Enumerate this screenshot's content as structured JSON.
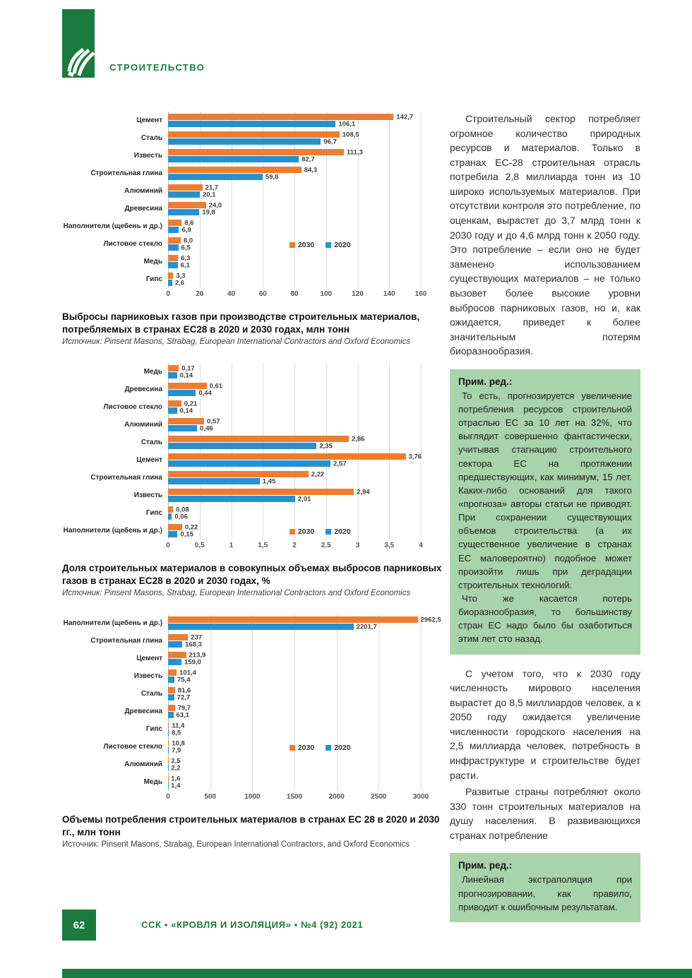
{
  "header": {
    "section_label": "СТРОИТЕЛЬСТВО"
  },
  "colors": {
    "accent_orange": "#ED7D31",
    "accent_blue": "#2791D0",
    "brand_green": "#1B7A3D",
    "note_green": "#A9D3AA"
  },
  "chart_data": [
    {
      "type": "bar",
      "orientation": "horizontal",
      "title": "Выбросы парниковых газов при производстве строительных материалов, потребляемых в странах ЕС28 в 2020 и 2030 годах, млн тонн",
      "source": "Источник: Pinsent Masons, Strabag, European International Contractors and Oxford Economics",
      "legend": [
        {
          "label": "2030",
          "color": "#ED7D31"
        },
        {
          "label": "2020",
          "color": "#2791D0"
        }
      ],
      "xlim": [
        0,
        160
      ],
      "xticks": [
        "0",
        "20",
        "40",
        "60",
        "80",
        "100",
        "120",
        "140",
        "160"
      ],
      "categories": [
        "Цемент",
        "Сталь",
        "Известь",
        "Строительная глина",
        "Алюминий",
        "Древесина",
        "Наполнители (щебень и др.)",
        "Листовое стекло",
        "Медь",
        "Гипс"
      ],
      "series": [
        {
          "name": "2030",
          "values": [
            142.7,
            108.5,
            111.3,
            84.3,
            21.7,
            24.0,
            8.6,
            8.0,
            6.3,
            3.3
          ],
          "labels": [
            "142,7",
            "108,5",
            "111,3",
            "84,3",
            "21,7",
            "24,0",
            "8,6",
            "8,0",
            "6,3",
            "3,3"
          ]
        },
        {
          "name": "2020",
          "values": [
            106.1,
            96.7,
            82.7,
            59.8,
            20.1,
            19.8,
            6.9,
            6.5,
            6.1,
            2.6
          ],
          "labels": [
            "106,1",
            "96,7",
            "82,7",
            "59,8",
            "20,1",
            "19,8",
            "6,9",
            "6,5",
            "6,1",
            "2,6"
          ]
        }
      ]
    },
    {
      "type": "bar",
      "orientation": "horizontal",
      "title": "Доля строительных материалов в совокупных объемах выбросов парниковых газов в странах ЕС28 в 2020 и 2030 годах, %",
      "source": "Источник: Pinsent Masons, Strabag, European International Contractors and Oxford Economics",
      "legend": [
        {
          "label": "2030",
          "color": "#ED7D31"
        },
        {
          "label": "2020",
          "color": "#2791D0"
        }
      ],
      "xlim": [
        0,
        4
      ],
      "xticks": [
        "0",
        "0,5",
        "1",
        "1,5",
        "2",
        "2,5",
        "3",
        "3,5",
        "4"
      ],
      "categories": [
        "Медь",
        "Древесина",
        "Листовое стекло",
        "Алюминий",
        "Сталь",
        "Цемент",
        "Строительная глина",
        "Известь",
        "Гипс",
        "Наполнители (щебень и др.)"
      ],
      "series": [
        {
          "name": "2030",
          "values": [
            0.17,
            0.61,
            0.21,
            0.57,
            2.86,
            3.76,
            2.22,
            2.94,
            0.08,
            0.22
          ],
          "labels": [
            "0,17",
            "0,61",
            "0,21",
            "0,57",
            "2,86",
            "3,76",
            "2,22",
            "2,94",
            "0,08",
            "0,22"
          ]
        },
        {
          "name": "2020",
          "values": [
            0.14,
            0.44,
            0.14,
            0.46,
            2.35,
            2.57,
            1.45,
            2.01,
            0.06,
            0.15
          ],
          "labels": [
            "0,14",
            "0,44",
            "0,14",
            "0,46",
            "2,35",
            "2,57",
            "1,45",
            "2,01",
            "0,06",
            "0,15"
          ]
        }
      ]
    },
    {
      "type": "bar",
      "orientation": "horizontal",
      "title": "Объемы потребления строительных материалов в странах ЕС 28 в 2020 и 2030 гг., млн тонн",
      "source": "Источник: Pinsent Masons, Strabag, European International Contractors, and Oxford Economics",
      "legend": [
        {
          "label": "2030",
          "color": "#ED7D31"
        },
        {
          "label": "2020",
          "color": "#2791D0"
        }
      ],
      "xlim": [
        0,
        3000
      ],
      "xticks": [
        "0",
        "500",
        "1000",
        "1500",
        "2000",
        "2500",
        "3000"
      ],
      "categories": [
        "Наполнители (щебень и др.)",
        "Строительная глина",
        "Цемент",
        "Известь",
        "Сталь",
        "Древесина",
        "Гипс",
        "Листовое стекло",
        "Алюминий",
        "Медь"
      ],
      "series": [
        {
          "name": "2030",
          "values": [
            2962.5,
            237,
            213.9,
            101.4,
            81.6,
            79.7,
            11.4,
            10.8,
            2.5,
            1.6
          ],
          "labels": [
            "2962,5",
            "237",
            "213,9",
            "101,4",
            "81,6",
            "79,7",
            "11,4",
            "10,8",
            "2,5",
            "1,6"
          ]
        },
        {
          "name": "2020",
          "values": [
            2201.7,
            168.3,
            159.0,
            75.4,
            72.7,
            63.1,
            8.5,
            7.9,
            2.2,
            1.4
          ],
          "labels": [
            "2201,7",
            "168,3",
            "159,0",
            "75,4",
            "72,7",
            "63,1",
            "8,5",
            "7,9",
            "2,2",
            "1,4"
          ]
        }
      ]
    }
  ],
  "article": {
    "paragraphs": [
      "Строительный сектор потребляет огромное количество природных ресурсов и материалов. Только в странах ЕС-28 строительная отрасль потребила 2,8 миллиарда тонн из 10 широко используемых материалов. При отсутствии контроля это потребление, по оценкам, вырастет до 3,7 млрд тонн к 2030 году и до 4,6 млрд тонн к 2050 году. Это потребление – если оно не будет заменено использованием существующих материалов – не только вызовет более высокие уровни выбросов парниковых газов, но и, как ожидается, приведет к более значительным потерям биоразнообразия.",
      "С учетом того, что к 2030 году численность мирового населения вырастет до 8,5 миллиардов человек, а к 2050 году ожидается увеличение численности городского населения на 2,5 миллиарда человек, потребность в инфраструктуре и строительстве будет расти.",
      "Развитые страны потребляют около 330 тонн строительных материалов на душу населения. В развивающихся странах потребление"
    ]
  },
  "notes": [
    {
      "heading": "Прим. ред.:",
      "paragraphs": [
        "То есть, прогнозируется увеличение потребления ресурсов строительной отраслью ЕС за 10 лет на 32%, что выглядит совершенно фантастически, учитывая стагнацию строительного сектора ЕС на протяжении предшествующих, как минимум, 15 лет. Каких-либо оснований для такого «прогноза» авторы статьи не приводят. При сохранении существующих объемов строительства (а их существенное увеличение в странах ЕС маловероятно) подобное может произойти лишь при деградации строительных технологий.",
        "Что же касается потерь биоразнообразия, то большинству стран ЕС надо было бы озаботиться этим лет сто назад."
      ]
    },
    {
      "heading": "Прим. ред.:",
      "paragraphs": [
        "Линейная экстраполяция при прогнозировании, как правило, приводит к ошибочным результатам."
      ]
    }
  ],
  "footer": {
    "page_number": "62",
    "imprint": "ССК ▪ «КРОВЛЯ И ИЗОЛЯЦИЯ» ▪ №4 (92) 2021"
  }
}
